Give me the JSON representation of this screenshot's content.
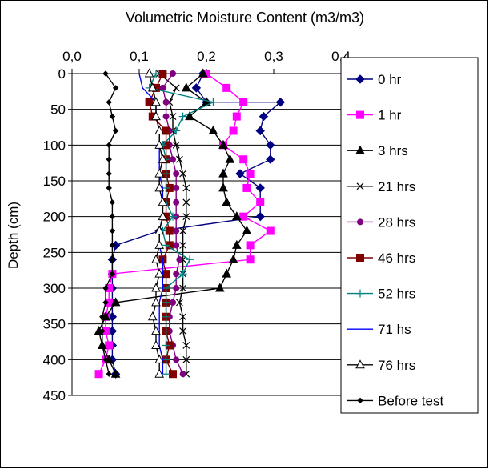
{
  "chart_data": {
    "type": "line",
    "title": "Volumetric Moisture Content (m3/m3)",
    "xlabel": "",
    "ylabel": "Depth (cm)",
    "x_axis_position": "top",
    "y_inverted": true,
    "xlim": [
      0,
      0.4
    ],
    "ylim": [
      0,
      450
    ],
    "xticks": [
      "0,0",
      "0,1",
      "0,2",
      "0,3",
      "0,4"
    ],
    "yticks": [
      "0",
      "50",
      "100",
      "150",
      "200",
      "250",
      "300",
      "350",
      "400",
      "450"
    ],
    "grid": "horizontal",
    "legend": "right",
    "series": [
      {
        "name": "0 hr",
        "color": "#000080",
        "marker": "diamond",
        "points": [
          [
            0.195,
            0
          ],
          [
            0.185,
            20
          ],
          [
            0.2,
            40
          ],
          [
            0.31,
            40
          ],
          [
            0.285,
            60
          ],
          [
            0.28,
            80
          ],
          [
            0.295,
            100
          ],
          [
            0.295,
            120
          ],
          [
            0.25,
            140
          ],
          [
            0.28,
            160
          ],
          [
            0.28,
            180
          ],
          [
            0.28,
            200
          ],
          [
            0.13,
            220
          ],
          [
            0.065,
            240
          ],
          [
            0.06,
            260
          ],
          [
            0.06,
            280
          ],
          [
            0.06,
            300
          ],
          [
            0.06,
            320
          ],
          [
            0.06,
            340
          ],
          [
            0.06,
            360
          ],
          [
            0.06,
            380
          ],
          [
            0.06,
            400
          ],
          [
            0.065,
            420
          ]
        ]
      },
      {
        "name": "1 hr",
        "color": "#ff00ff",
        "marker": "square",
        "points": [
          [
            0.2,
            0
          ],
          [
            0.23,
            20
          ],
          [
            0.255,
            40
          ],
          [
            0.245,
            60
          ],
          [
            0.24,
            80
          ],
          [
            0.225,
            100
          ],
          [
            0.255,
            120
          ],
          [
            0.265,
            140
          ],
          [
            0.26,
            160
          ],
          [
            0.28,
            180
          ],
          [
            0.255,
            200
          ],
          [
            0.295,
            220
          ],
          [
            0.265,
            240
          ],
          [
            0.265,
            260
          ],
          [
            0.06,
            280
          ],
          [
            0.055,
            300
          ],
          [
            0.055,
            320
          ],
          [
            0.05,
            340
          ],
          [
            0.05,
            360
          ],
          [
            0.055,
            380
          ],
          [
            0.05,
            400
          ],
          [
            0.04,
            420
          ]
        ]
      },
      {
        "name": "3 hrs",
        "color": "#000000",
        "marker": "triangle",
        "points": [
          [
            0.195,
            0
          ],
          [
            0.17,
            20
          ],
          [
            0.2,
            40
          ],
          [
            0.175,
            60
          ],
          [
            0.21,
            80
          ],
          [
            0.225,
            100
          ],
          [
            0.235,
            120
          ],
          [
            0.225,
            140
          ],
          [
            0.225,
            160
          ],
          [
            0.23,
            180
          ],
          [
            0.245,
            200
          ],
          [
            0.26,
            220
          ],
          [
            0.245,
            240
          ],
          [
            0.24,
            260
          ],
          [
            0.23,
            280
          ],
          [
            0.22,
            300
          ],
          [
            0.065,
            320
          ],
          [
            0.05,
            340
          ],
          [
            0.04,
            360
          ],
          [
            0.045,
            380
          ],
          [
            0.055,
            400
          ],
          [
            0.065,
            420
          ]
        ]
      },
      {
        "name": "21 hrs",
        "color": "#000000",
        "marker": "x",
        "points": [
          [
            0.13,
            0
          ],
          [
            0.155,
            20
          ],
          [
            0.145,
            40
          ],
          [
            0.15,
            60
          ],
          [
            0.15,
            80
          ],
          [
            0.155,
            100
          ],
          [
            0.16,
            120
          ],
          [
            0.165,
            140
          ],
          [
            0.17,
            160
          ],
          [
            0.17,
            180
          ],
          [
            0.17,
            200
          ],
          [
            0.165,
            220
          ],
          [
            0.165,
            240
          ],
          [
            0.165,
            260
          ],
          [
            0.165,
            280
          ],
          [
            0.165,
            300
          ],
          [
            0.16,
            320
          ],
          [
            0.165,
            340
          ],
          [
            0.165,
            360
          ],
          [
            0.17,
            380
          ],
          [
            0.17,
            400
          ],
          [
            0.17,
            420
          ]
        ]
      },
      {
        "name": "28 hrs",
        "color": "#800080",
        "marker": "circle",
        "points": [
          [
            0.15,
            0
          ],
          [
            0.135,
            20
          ],
          [
            0.14,
            40
          ],
          [
            0.14,
            60
          ],
          [
            0.145,
            80
          ],
          [
            0.145,
            100
          ],
          [
            0.15,
            120
          ],
          [
            0.155,
            140
          ],
          [
            0.155,
            160
          ],
          [
            0.155,
            180
          ],
          [
            0.155,
            200
          ],
          [
            0.155,
            220
          ],
          [
            0.155,
            240
          ],
          [
            0.16,
            260
          ],
          [
            0.155,
            280
          ],
          [
            0.155,
            300
          ],
          [
            0.15,
            320
          ],
          [
            0.145,
            340
          ],
          [
            0.145,
            360
          ],
          [
            0.15,
            380
          ],
          [
            0.155,
            400
          ],
          [
            0.165,
            420
          ]
        ]
      },
      {
        "name": "46 hrs",
        "color": "#800000",
        "marker": "square",
        "points": [
          [
            0.135,
            0
          ],
          [
            0.125,
            20
          ],
          [
            0.115,
            40
          ],
          [
            0.12,
            60
          ],
          [
            0.14,
            80
          ],
          [
            0.14,
            100
          ],
          [
            0.14,
            120
          ],
          [
            0.14,
            140
          ],
          [
            0.145,
            160
          ],
          [
            0.14,
            180
          ],
          [
            0.14,
            200
          ],
          [
            0.145,
            220
          ],
          [
            0.145,
            240
          ],
          [
            0.135,
            260
          ],
          [
            0.14,
            280
          ],
          [
            0.14,
            300
          ],
          [
            0.14,
            320
          ],
          [
            0.14,
            340
          ],
          [
            0.14,
            360
          ],
          [
            0.145,
            380
          ],
          [
            0.14,
            400
          ],
          [
            0.15,
            420
          ]
        ]
      },
      {
        "name": "52 hrs",
        "color": "#008080",
        "marker": "plus",
        "points": [
          [
            0.125,
            0
          ],
          [
            0.115,
            20
          ],
          [
            0.21,
            40
          ],
          [
            0.165,
            60
          ],
          [
            0.155,
            80
          ],
          [
            0.135,
            100
          ],
          [
            0.14,
            120
          ],
          [
            0.14,
            140
          ],
          [
            0.14,
            160
          ],
          [
            0.14,
            180
          ],
          [
            0.15,
            200
          ],
          [
            0.135,
            220
          ],
          [
            0.14,
            240
          ],
          [
            0.175,
            260
          ],
          [
            0.165,
            280
          ],
          [
            0.14,
            300
          ],
          [
            0.14,
            320
          ],
          [
            0.14,
            340
          ],
          [
            0.14,
            360
          ],
          [
            0.14,
            380
          ],
          [
            0.14,
            400
          ],
          [
            0.14,
            420
          ]
        ]
      },
      {
        "name": "71 hs",
        "color": "#0000ff",
        "marker": "none",
        "points": [
          [
            0.1,
            0
          ],
          [
            0.105,
            20
          ],
          [
            0.125,
            40
          ],
          [
            0.125,
            60
          ],
          [
            0.13,
            80
          ],
          [
            0.13,
            100
          ],
          [
            0.13,
            120
          ],
          [
            0.13,
            140
          ],
          [
            0.135,
            160
          ],
          [
            0.135,
            180
          ],
          [
            0.135,
            200
          ],
          [
            0.13,
            220
          ],
          [
            0.13,
            240
          ],
          [
            0.135,
            260
          ],
          [
            0.135,
            280
          ],
          [
            0.135,
            300
          ],
          [
            0.13,
            320
          ],
          [
            0.13,
            340
          ],
          [
            0.13,
            360
          ],
          [
            0.13,
            380
          ],
          [
            0.135,
            400
          ],
          [
            0.135,
            420
          ]
        ]
      },
      {
        "name": "76 hrs",
        "color": "#000000",
        "marker": "open-triangle",
        "points": [
          [
            0.115,
            0
          ],
          [
            0.12,
            20
          ],
          [
            0.125,
            40
          ],
          [
            0.125,
            60
          ],
          [
            0.13,
            80
          ],
          [
            0.13,
            100
          ],
          [
            0.135,
            120
          ],
          [
            0.13,
            140
          ],
          [
            0.13,
            160
          ],
          [
            0.135,
            180
          ],
          [
            0.135,
            200
          ],
          [
            0.13,
            220
          ],
          [
            0.13,
            240
          ],
          [
            0.125,
            260
          ],
          [
            0.13,
            280
          ],
          [
            0.125,
            300
          ],
          [
            0.125,
            320
          ],
          [
            0.12,
            340
          ],
          [
            0.125,
            360
          ],
          [
            0.125,
            380
          ],
          [
            0.13,
            400
          ],
          [
            0.13,
            420
          ]
        ]
      },
      {
        "name": "Before test",
        "color": "#000000",
        "marker": "small-diamond",
        "points": [
          [
            0.05,
            0
          ],
          [
            0.065,
            20
          ],
          [
            0.055,
            40
          ],
          [
            0.06,
            60
          ],
          [
            0.065,
            80
          ],
          [
            0.055,
            100
          ],
          [
            0.055,
            120
          ],
          [
            0.055,
            140
          ],
          [
            0.055,
            160
          ],
          [
            0.06,
            180
          ],
          [
            0.06,
            200
          ],
          [
            0.06,
            220
          ],
          [
            0.06,
            240
          ],
          [
            0.06,
            260
          ],
          [
            0.06,
            280
          ],
          [
            0.05,
            300
          ],
          [
            0.05,
            320
          ],
          [
            0.045,
            340
          ],
          [
            0.045,
            360
          ],
          [
            0.045,
            380
          ],
          [
            0.05,
            400
          ],
          [
            0.055,
            420
          ]
        ]
      }
    ]
  }
}
